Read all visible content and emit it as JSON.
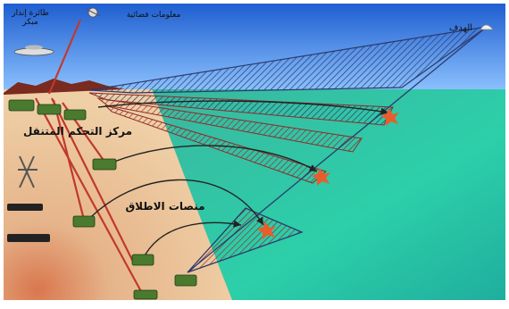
{
  "labels": {
    "control_center": "مركز التحكم المتنقل",
    "launchers": "منصات الاطلاق",
    "target": "الهدف",
    "aircraft": "طائرة إنذار مبكر",
    "satellite": "معلومات فضائية"
  },
  "colors": {
    "sky": "#3f7fdc",
    "sea": "#26c7a6",
    "desert": "#e8b98c",
    "missile_trail": "#c0392b",
    "hatch": "#2b3a6b"
  }
}
